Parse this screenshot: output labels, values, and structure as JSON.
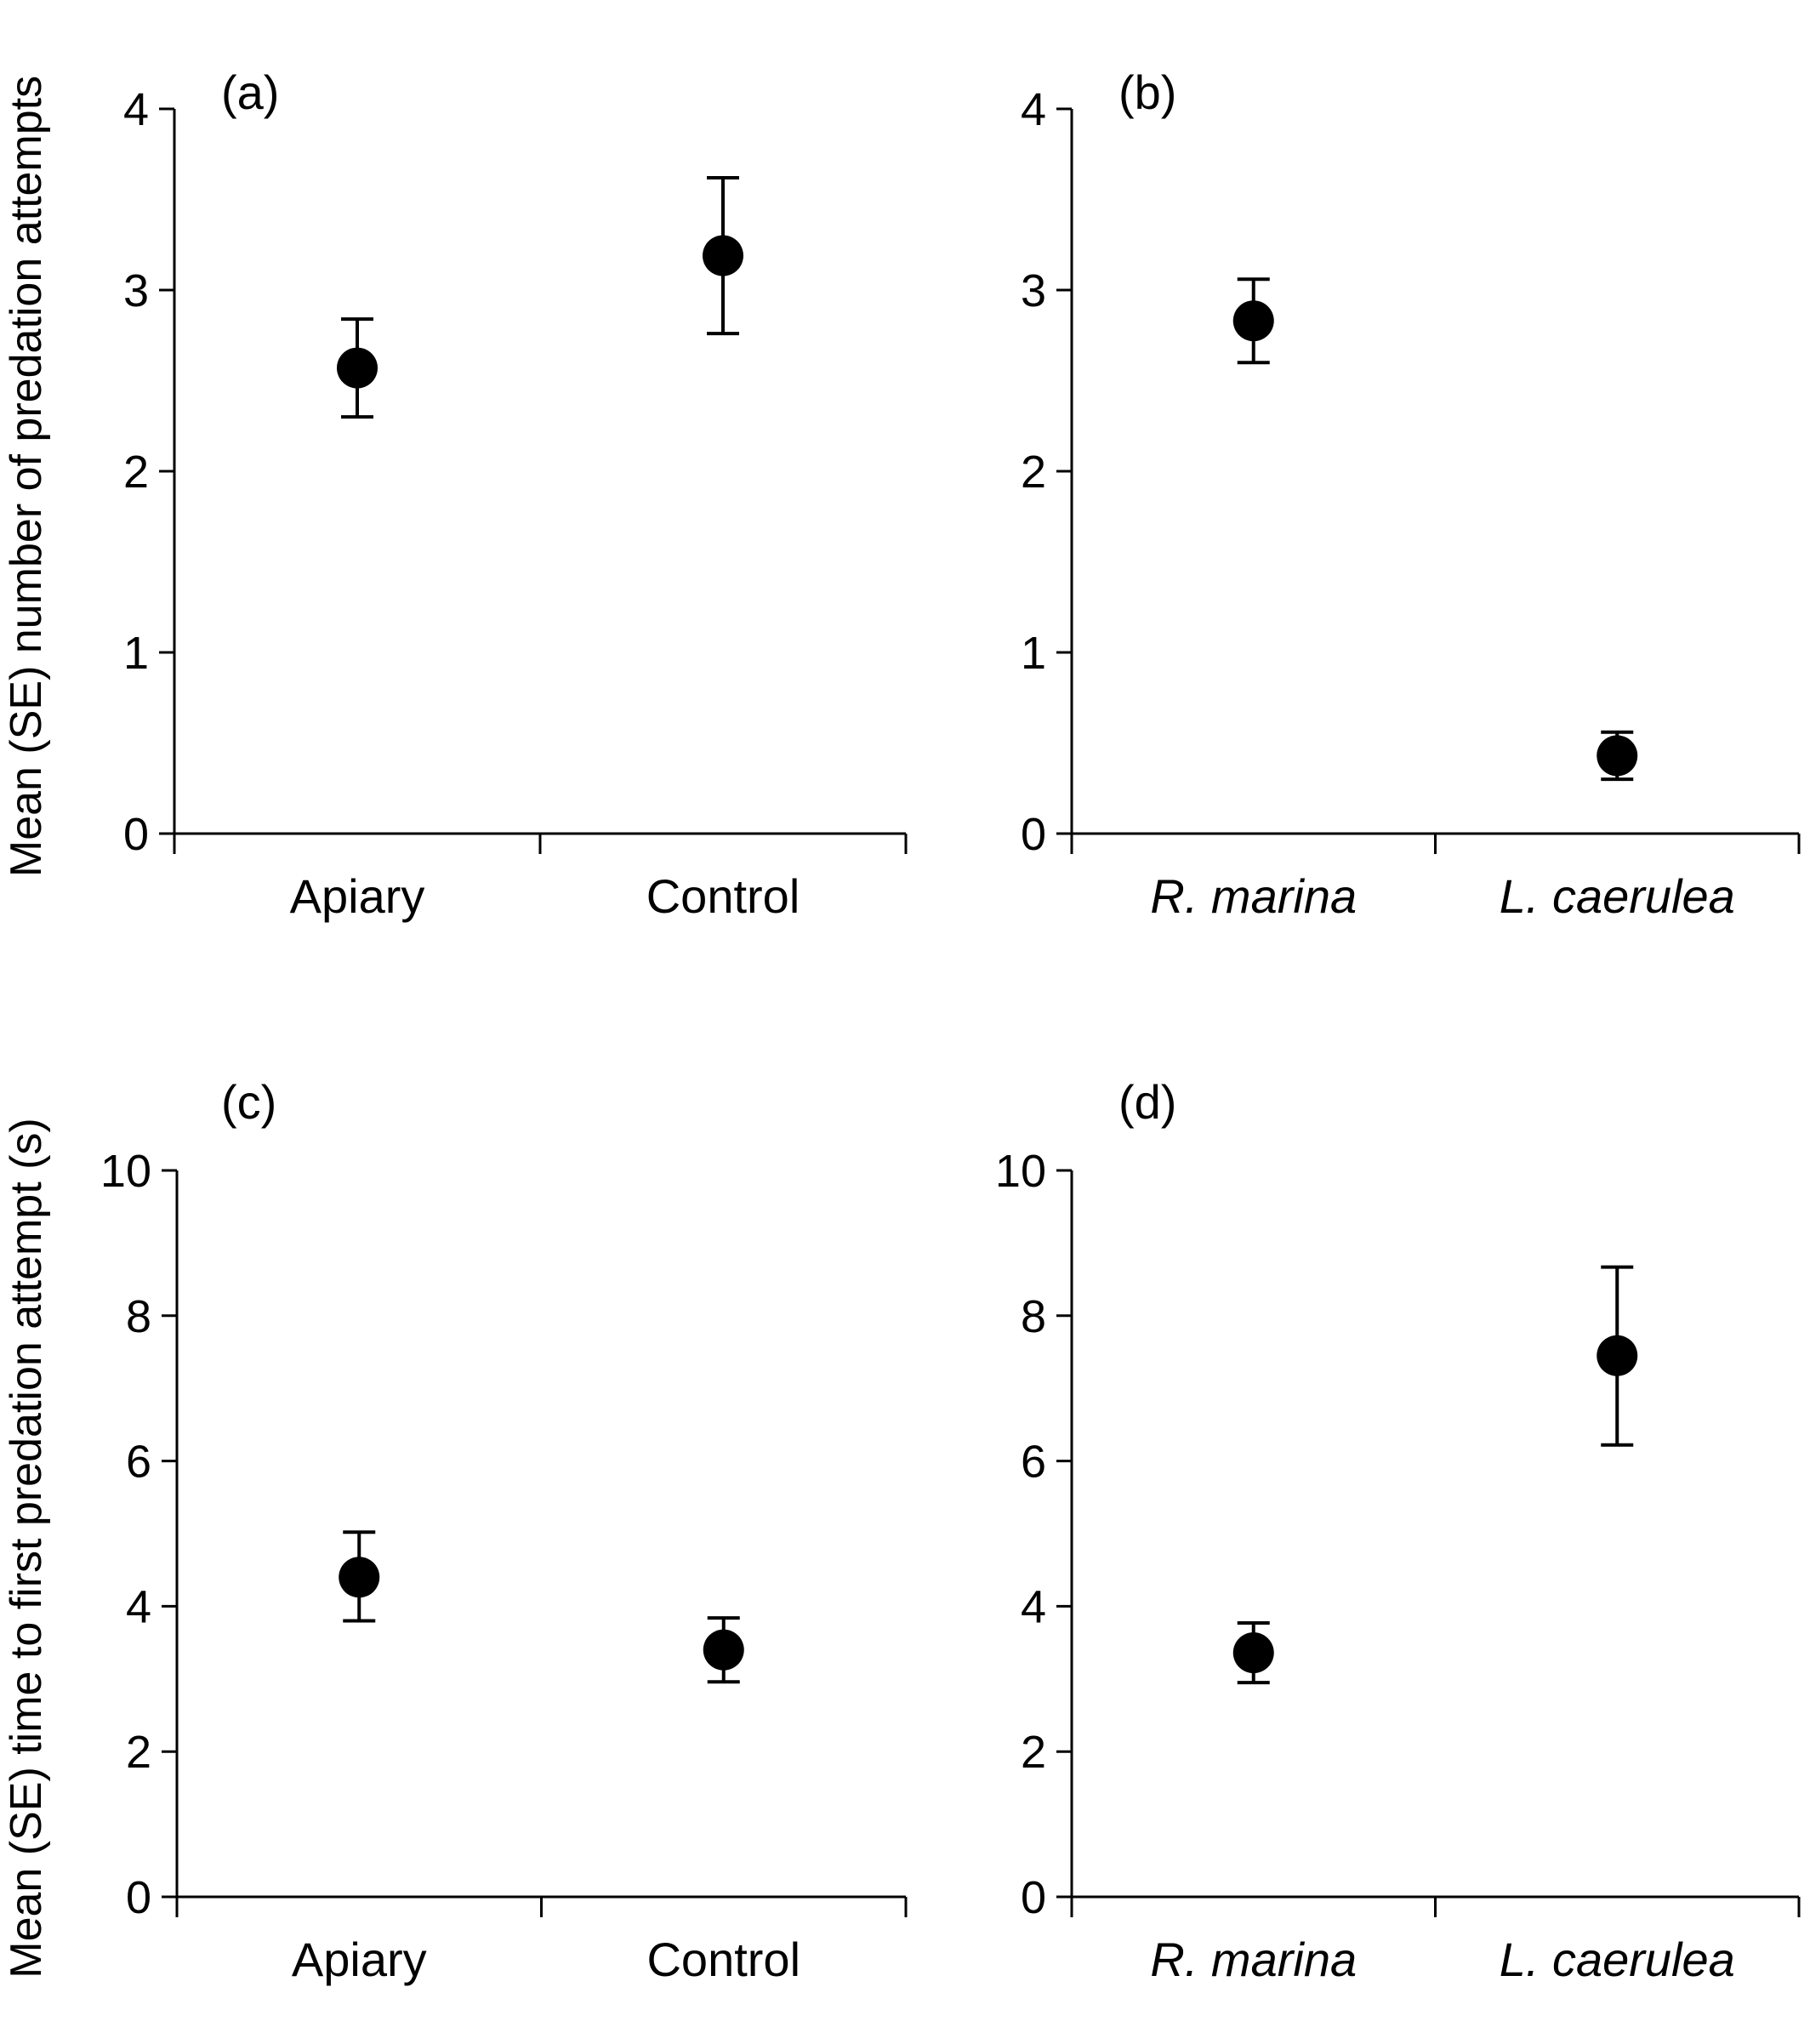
{
  "chart_data": [
    {
      "type": "scatter",
      "panel": "(a)",
      "categories": [
        "Apiary",
        "Control"
      ],
      "italic_categories": false,
      "values": [
        2.57,
        3.19
      ],
      "error_low": [
        2.3,
        2.76
      ],
      "error_high": [
        2.84,
        3.62
      ],
      "ylim": [
        0,
        4
      ],
      "yticks": [
        "0",
        "1",
        "2",
        "3",
        "4"
      ]
    },
    {
      "type": "scatter",
      "panel": "(b)",
      "categories": [
        "R. marina",
        "L. caerulea"
      ],
      "italic_categories": true,
      "values": [
        2.83,
        0.43
      ],
      "error_low": [
        2.6,
        0.3
      ],
      "error_high": [
        3.06,
        0.56
      ],
      "ylim": [
        0,
        4
      ],
      "yticks": [
        "0",
        "1",
        "2",
        "3",
        "4"
      ]
    },
    {
      "type": "scatter",
      "panel": "(c)",
      "categories": [
        "Apiary",
        "Control"
      ],
      "italic_categories": false,
      "values": [
        4.4,
        3.4
      ],
      "error_low": [
        3.8,
        2.96
      ],
      "error_high": [
        5.02,
        3.84
      ],
      "ylim": [
        0,
        10
      ],
      "yticks": [
        "0",
        "2",
        "4",
        "6",
        "8",
        "10"
      ]
    },
    {
      "type": "scatter",
      "panel": "(d)",
      "categories": [
        "R. marina",
        "L. caerulea"
      ],
      "italic_categories": true,
      "values": [
        3.36,
        7.45
      ],
      "error_low": [
        2.95,
        6.22
      ],
      "error_high": [
        3.77,
        8.67
      ],
      "ylim": [
        0,
        10
      ],
      "yticks": [
        "0",
        "2",
        "4",
        "6",
        "8",
        "10"
      ]
    }
  ],
  "ylabels": {
    "top": "Mean (SE) number of predation attempts",
    "bottom": "Mean (SE) time to first predation attempt (s)"
  },
  "colors": {
    "marker": "#000000",
    "axis": "#000000"
  }
}
